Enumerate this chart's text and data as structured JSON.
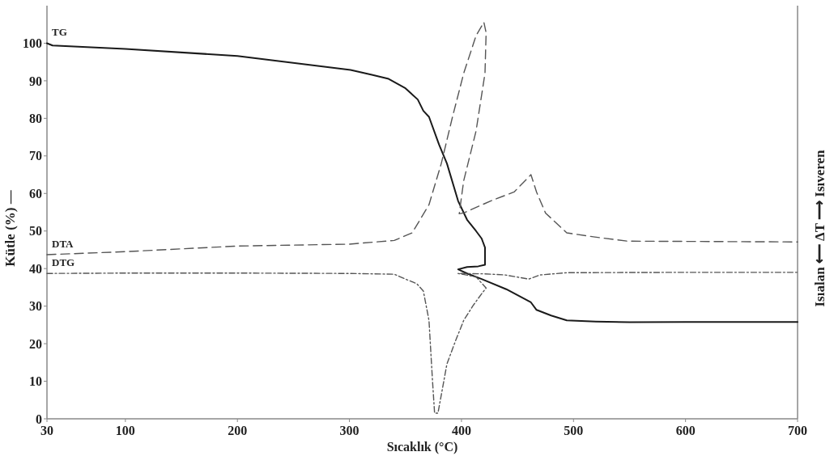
{
  "chart_data": {
    "type": "line",
    "xlabel": "Sıcaklık (°C)",
    "ylabel": "Kütle (%) —",
    "y2label": "Isıalan ⟵ ΔT ⟶ Isıveren",
    "xlim": [
      30,
      700
    ],
    "xticks": [
      30,
      100,
      200,
      300,
      400,
      500,
      600,
      700
    ],
    "ylim": [
      0,
      110
    ],
    "yticks": [
      0,
      10,
      20,
      30,
      40,
      50,
      60,
      70,
      80,
      90,
      100
    ],
    "marker": "none",
    "series": [
      {
        "name": "TG",
        "color": "#1a1a1a",
        "line_style": "solid",
        "x": [
          30,
          35,
          100,
          200,
          301,
          320,
          335,
          350,
          361,
          366,
          371,
          380,
          387,
          397,
          405,
          413,
          418,
          421,
          421,
          415,
          405,
          397,
          405,
          418,
          440,
          462,
          467,
          480,
          494,
          520,
          550,
          600,
          700
        ],
        "values": [
          100,
          99.4,
          98.5,
          96.6,
          92.9,
          91.6,
          90.5,
          88,
          85,
          82,
          80.4,
          73,
          68,
          58,
          53,
          50,
          48,
          45.6,
          41,
          40.6,
          40.4,
          39.8,
          38.7,
          37.2,
          34.5,
          31,
          29,
          27.5,
          26.2,
          25.9,
          25.7,
          25.8,
          25.8
        ]
      },
      {
        "name": "DTA",
        "color": "#555555",
        "line_style": "dashed",
        "x": [
          30,
          100,
          200,
          300,
          340,
          356,
          371,
          382,
          392,
          402,
          413,
          420,
          422,
          421,
          413,
          402,
          398,
          402,
          426,
          447,
          462,
          467,
          475,
          494,
          519,
          548,
          698,
          700
        ],
        "values": [
          43.7,
          44.5,
          46,
          46.5,
          47.5,
          49.5,
          57,
          68,
          80.4,
          92,
          102,
          105.6,
          102.8,
          92,
          76.6,
          63.4,
          54.6,
          54.8,
          58,
          60.4,
          65,
          60.4,
          54.8,
          49.5,
          48.4,
          47.3,
          47.1,
          47.1
        ]
      },
      {
        "name": "DTG",
        "color": "#555555",
        "line_style": "dotted",
        "x": [
          30,
          100,
          200,
          300,
          340,
          350,
          360,
          366,
          371,
          374,
          376,
          379,
          383,
          387,
          395,
          402,
          410,
          418,
          422,
          413,
          397,
          420,
          439,
          460,
          470,
          494,
          600,
          700
        ],
        "values": [
          38.7,
          38.8,
          38.8,
          38.7,
          38.5,
          37.2,
          36,
          34,
          26.2,
          10.8,
          1.5,
          1.5,
          8,
          14.6,
          21,
          26.2,
          30,
          33.3,
          34.8,
          37.8,
          38.7,
          38.6,
          38.3,
          37.2,
          38.3,
          38.9,
          39,
          39
        ]
      }
    ]
  }
}
